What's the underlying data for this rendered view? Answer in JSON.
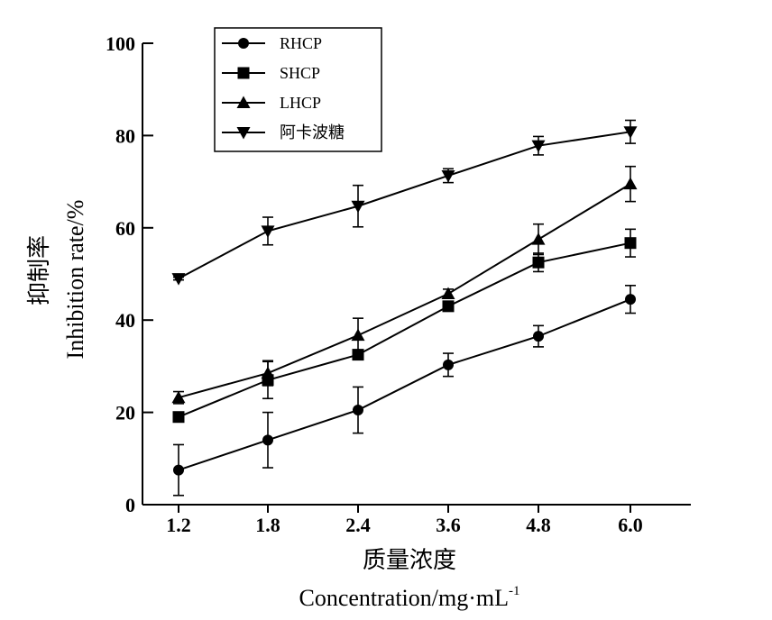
{
  "chart_data": {
    "type": "line",
    "x_tick_labels": [
      "1.2",
      "1.8",
      "2.4",
      "3.6",
      "4.8",
      "6.0"
    ],
    "x": [
      1.2,
      1.8,
      2.4,
      3.6,
      4.8,
      6.0
    ],
    "ylim": [
      0,
      100
    ],
    "y_ticks": [
      0,
      20,
      40,
      60,
      80,
      100
    ],
    "y_tick_labels": [
      "0",
      "20",
      "40",
      "60",
      "80",
      "100"
    ],
    "ylabel_cn": "抑制率",
    "ylabel_en": "Inhibition rate/%",
    "xlabel_cn": "质量浓度",
    "xlabel_en": "Concentration/mg·mL",
    "xlabel_sup": "-1",
    "legend_position": "top-left",
    "grid": false,
    "series": [
      {
        "name": "RHCP",
        "marker": "circle",
        "values": [
          7.5,
          14,
          20.5,
          30.3,
          36.5,
          44.5
        ],
        "errors": [
          5.5,
          6,
          5,
          2.5,
          2.3,
          3
        ]
      },
      {
        "name": "SHCP",
        "marker": "square",
        "values": [
          19,
          27,
          32.5,
          43,
          52.5,
          56.7
        ],
        "errors": [
          1,
          4,
          1,
          1,
          2,
          3
        ]
      },
      {
        "name": "LHCP",
        "marker": "triangle-up",
        "values": [
          23.2,
          28.5,
          36.7,
          45.7,
          57.5,
          69.5
        ],
        "errors": [
          1.3,
          2.7,
          3.7,
          1,
          3.3,
          3.8
        ]
      },
      {
        "name": "阿卡波糖",
        "marker": "triangle-down",
        "values": [
          49,
          59.3,
          64.7,
          71.3,
          77.8,
          80.8
        ],
        "errors": [
          0.3,
          3,
          4.5,
          1.5,
          2,
          2.5
        ]
      }
    ]
  }
}
